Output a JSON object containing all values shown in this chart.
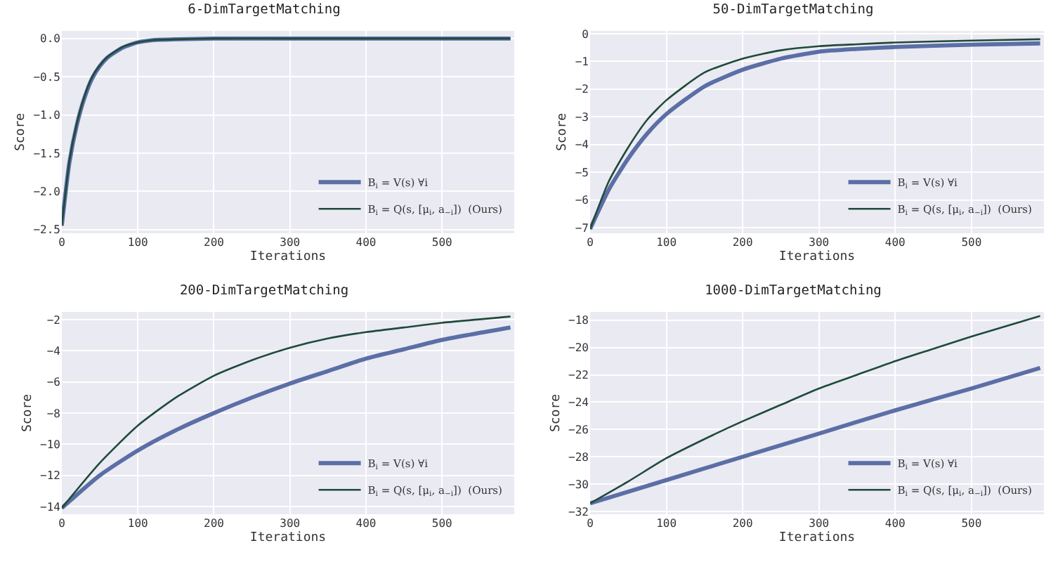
{
  "chart_data": [
    {
      "type": "line",
      "title": "6-DimTargetMatching",
      "xlabel": "Iterations",
      "ylabel": "Score",
      "xlim": [
        0,
        595
      ],
      "xticks": [
        0,
        100,
        200,
        300,
        400,
        500
      ],
      "ylim": [
        -2.55,
        0.1
      ],
      "yticks": [
        {
          "value": 0,
          "label": "0.0"
        },
        {
          "value": -0.5,
          "label": "−0.5"
        },
        {
          "value": -1,
          "label": "−1.0"
        },
        {
          "value": -1.5,
          "label": "−1.5"
        },
        {
          "value": -2,
          "label": "−2.0"
        },
        {
          "value": -2.5,
          "label": "−2.5"
        }
      ],
      "grid": true,
      "legend": "bottom right",
      "series": [
        {
          "name": "B$_{i}$ = V(s) ∀i",
          "color": "#5b6ea6",
          "x": [
            0,
            10,
            20,
            30,
            40,
            50,
            60,
            80,
            100,
            120,
            150,
            200,
            300,
            400,
            500,
            590
          ],
          "values": [
            -2.45,
            -1.62,
            -1.12,
            -0.77,
            -0.52,
            -0.36,
            -0.25,
            -0.12,
            -0.05,
            -0.02,
            -0.01,
            0,
            0,
            0,
            0,
            0
          ]
        },
        {
          "name": "B$_{i}$ = Q(s, [μ$_{i}$, a$_{−i}$])  (Ours)",
          "color": "#1f4a3a",
          "x": [
            0,
            10,
            20,
            30,
            40,
            50,
            60,
            80,
            100,
            120,
            150,
            200,
            300,
            400,
            500,
            590
          ],
          "values": [
            -2.45,
            -1.6,
            -1.1,
            -0.75,
            -0.5,
            -0.35,
            -0.24,
            -0.11,
            -0.05,
            -0.02,
            -0.01,
            0,
            0,
            0,
            0,
            0
          ]
        }
      ]
    },
    {
      "type": "line",
      "title": "50-DimTargetMatching",
      "xlabel": "Iterations",
      "ylabel": "Score",
      "xlim": [
        0,
        595
      ],
      "xticks": [
        0,
        100,
        200,
        300,
        400,
        500
      ],
      "ylim": [
        -7.2,
        0.1
      ],
      "yticks": [
        {
          "value": 0,
          "label": "0"
        },
        {
          "value": -1,
          "label": "−1"
        },
        {
          "value": -2,
          "label": "−2"
        },
        {
          "value": -3,
          "label": "−3"
        },
        {
          "value": -4,
          "label": "−4"
        },
        {
          "value": -5,
          "label": "−5"
        },
        {
          "value": -6,
          "label": "−6"
        },
        {
          "value": -7,
          "label": "−7"
        }
      ],
      "grid": true,
      "legend": "bottom right",
      "series": [
        {
          "name": "B$_{i}$ = V(s) ∀i",
          "color": "#5b6ea6",
          "x": [
            0,
            25,
            50,
            75,
            100,
            150,
            200,
            250,
            300,
            350,
            400,
            500,
            590
          ],
          "values": [
            -7.05,
            -5.6,
            -4.5,
            -3.6,
            -2.9,
            -1.9,
            -1.3,
            -0.9,
            -0.65,
            -0.55,
            -0.48,
            -0.4,
            -0.35
          ]
        },
        {
          "name": "B$_{i}$ = Q(s, [μ$_{i}$, a$_{−i}$])  (Ours)",
          "color": "#1f4a3a",
          "x": [
            0,
            25,
            50,
            75,
            100,
            150,
            200,
            250,
            300,
            350,
            400,
            500,
            590
          ],
          "values": [
            -7.05,
            -5.3,
            -4.1,
            -3.1,
            -2.4,
            -1.4,
            -0.9,
            -0.6,
            -0.45,
            -0.38,
            -0.32,
            -0.25,
            -0.2
          ]
        }
      ]
    },
    {
      "type": "line",
      "title": "200-DimTargetMatching",
      "xlabel": "Iterations",
      "ylabel": "Score",
      "xlim": [
        0,
        595
      ],
      "xticks": [
        0,
        100,
        200,
        300,
        400,
        500
      ],
      "ylim": [
        -14.5,
        -1.5
      ],
      "yticks": [
        {
          "value": -2,
          "label": "−2"
        },
        {
          "value": -4,
          "label": "−4"
        },
        {
          "value": -6,
          "label": "−6"
        },
        {
          "value": -8,
          "label": "−8"
        },
        {
          "value": -10,
          "label": "−10"
        },
        {
          "value": -12,
          "label": "−12"
        },
        {
          "value": -14,
          "label": "−14"
        }
      ],
      "grid": true,
      "legend": "bottom right",
      "series": [
        {
          "name": "B$_{i}$ = V(s) ∀i",
          "color": "#5b6ea6",
          "x": [
            0,
            50,
            100,
            150,
            200,
            250,
            300,
            350,
            400,
            450,
            500,
            590
          ],
          "values": [
            -14.1,
            -12,
            -10.4,
            -9.1,
            -8,
            -7,
            -6.1,
            -5.3,
            -4.5,
            -3.9,
            -3.3,
            -2.5
          ]
        },
        {
          "name": "B$_{i}$ = Q(s, [μ$_{i}$, a$_{−i}$])  (Ours)",
          "color": "#1f4a3a",
          "x": [
            0,
            50,
            100,
            150,
            200,
            250,
            300,
            350,
            400,
            450,
            500,
            590
          ],
          "values": [
            -14.1,
            -11.2,
            -8.8,
            -7,
            -5.6,
            -4.6,
            -3.8,
            -3.2,
            -2.8,
            -2.5,
            -2.2,
            -1.8
          ]
        }
      ]
    },
    {
      "type": "line",
      "title": "1000-DimTargetMatching",
      "xlabel": "Iterations",
      "ylabel": "Score",
      "xlim": [
        0,
        595
      ],
      "xticks": [
        0,
        100,
        200,
        300,
        400,
        500
      ],
      "ylim": [
        -32.2,
        -17.4
      ],
      "yticks": [
        {
          "value": -18,
          "label": "−18"
        },
        {
          "value": -20,
          "label": "−20"
        },
        {
          "value": -22,
          "label": "−22"
        },
        {
          "value": -24,
          "label": "−24"
        },
        {
          "value": -26,
          "label": "−26"
        },
        {
          "value": -28,
          "label": "−28"
        },
        {
          "value": -30,
          "label": "−30"
        },
        {
          "value": -32,
          "label": "−32"
        }
      ],
      "grid": true,
      "legend": "bottom right",
      "series": [
        {
          "name": "B$_{i}$ = V(s) ∀i",
          "color": "#5b6ea6",
          "x": [
            0,
            100,
            200,
            300,
            400,
            500,
            590
          ],
          "values": [
            -31.4,
            -29.7,
            -28,
            -26.3,
            -24.6,
            -23,
            -21.5
          ]
        },
        {
          "name": "B$_{i}$ = Q(s, [μ$_{i}$, a$_{−i}$])  (Ours)",
          "color": "#1f4a3a",
          "x": [
            0,
            50,
            100,
            150,
            200,
            250,
            300,
            350,
            400,
            450,
            500,
            590
          ],
          "values": [
            -31.4,
            -29.8,
            -28.1,
            -26.7,
            -25.4,
            -24.2,
            -23,
            -22,
            -21,
            -20.1,
            -19.2,
            -17.7
          ]
        }
      ]
    }
  ]
}
